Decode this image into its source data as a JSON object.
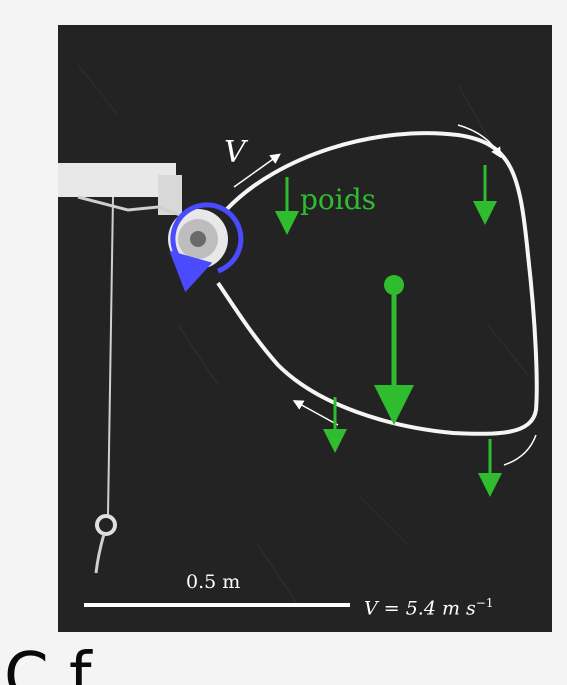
{
  "annotations": {
    "velocity_symbol": "V",
    "weight_label": "poids",
    "scale_length": "0.5 m",
    "velocity_prefix": "V = 5.4 m s",
    "velocity_exponent": "−1"
  },
  "caption_partial": "C          f",
  "colors": {
    "photo_background": "#232323",
    "loop": "#ffffff",
    "weight_arrows": "#2fbd2f",
    "rotation_arrow": "#4a4aff"
  },
  "icons": [
    "rotation-arrow-icon",
    "weight-arrow-icon",
    "velocity-arrow-icon",
    "center-of-mass-icon"
  ]
}
